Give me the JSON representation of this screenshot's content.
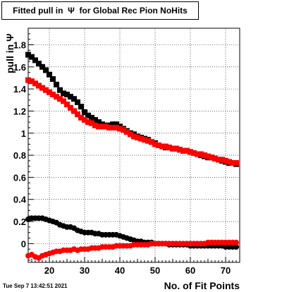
{
  "window": {
    "title": "Fitted pull in  Ψ  for Global Rec Pion NoHits",
    "datestamp": "Tue Sep  7 13:42:51 2021"
  },
  "chart_data": {
    "type": "scatter",
    "title": "Fitted pull in  Ψ  for Global Rec Pion NoHits",
    "xlabel": "No. of Fit Points",
    "ylabel": "pull in Ψ",
    "xlim": [
      14,
      74
    ],
    "ylim": [
      -0.17,
      1.95
    ],
    "grid": true,
    "x_ticks": [
      20,
      30,
      40,
      50,
      60,
      70
    ],
    "y_ticks": [
      0,
      0.2,
      0.4,
      0.6,
      0.8,
      1,
      1.2,
      1.4,
      1.6,
      1.8
    ],
    "series": [
      {
        "color": "#000000",
        "marker": "square",
        "points": [
          [
            14,
            1.71
          ],
          [
            15,
            1.69
          ],
          [
            16,
            1.66
          ],
          [
            17,
            1.63
          ],
          [
            18,
            1.6
          ],
          [
            19,
            1.57
          ],
          [
            20,
            1.53
          ],
          [
            21,
            1.49
          ],
          [
            22,
            1.44
          ],
          [
            23,
            1.39
          ],
          [
            24,
            1.36
          ],
          [
            25,
            1.35
          ],
          [
            26,
            1.33
          ],
          [
            27,
            1.31
          ],
          [
            28,
            1.28
          ],
          [
            29,
            1.24
          ],
          [
            30,
            1.19
          ],
          [
            31,
            1.16
          ],
          [
            32,
            1.14
          ],
          [
            33,
            1.12
          ],
          [
            34,
            1.1
          ],
          [
            35,
            1.08
          ],
          [
            36,
            1.07
          ],
          [
            37,
            1.07
          ],
          [
            38,
            1.08
          ],
          [
            39,
            1.08
          ],
          [
            40,
            1.06
          ],
          [
            41,
            1.04
          ],
          [
            42,
            1.02
          ],
          [
            43,
            1.0
          ],
          [
            44,
            0.99
          ],
          [
            45,
            0.97
          ],
          [
            46,
            0.96
          ],
          [
            47,
            0.95
          ],
          [
            48,
            0.94
          ],
          [
            49,
            0.92
          ],
          [
            50,
            0.91
          ],
          [
            51,
            0.89
          ],
          [
            52,
            0.88
          ],
          [
            53,
            0.87
          ],
          [
            54,
            0.87
          ],
          [
            55,
            0.86
          ],
          [
            56,
            0.86
          ],
          [
            57,
            0.85
          ],
          [
            58,
            0.84
          ],
          [
            59,
            0.84
          ],
          [
            60,
            0.83
          ],
          [
            61,
            0.82
          ],
          [
            62,
            0.81
          ],
          [
            63,
            0.8
          ],
          [
            64,
            0.79
          ],
          [
            65,
            0.78
          ],
          [
            66,
            0.78
          ],
          [
            67,
            0.77
          ],
          [
            68,
            0.76
          ],
          [
            69,
            0.75
          ],
          [
            70,
            0.74
          ],
          [
            71,
            0.73
          ],
          [
            72,
            0.73
          ],
          [
            73,
            0.72
          ]
        ]
      },
      {
        "color": "#ff0000",
        "marker": "square",
        "points": [
          [
            14,
            1.48
          ],
          [
            15,
            1.47
          ],
          [
            16,
            1.45
          ],
          [
            17,
            1.43
          ],
          [
            18,
            1.41
          ],
          [
            19,
            1.39
          ],
          [
            20,
            1.37
          ],
          [
            21,
            1.35
          ],
          [
            22,
            1.33
          ],
          [
            23,
            1.31
          ],
          [
            24,
            1.29
          ],
          [
            25,
            1.26
          ],
          [
            26,
            1.23
          ],
          [
            27,
            1.2
          ],
          [
            28,
            1.17
          ],
          [
            29,
            1.14
          ],
          [
            30,
            1.12
          ],
          [
            31,
            1.1
          ],
          [
            32,
            1.09
          ],
          [
            33,
            1.07
          ],
          [
            34,
            1.06
          ],
          [
            35,
            1.06
          ],
          [
            36,
            1.06
          ],
          [
            37,
            1.05
          ],
          [
            38,
            1.05
          ],
          [
            39,
            1.05
          ],
          [
            40,
            1.04
          ],
          [
            41,
            1.03
          ],
          [
            42,
            1.01
          ],
          [
            43,
            0.99
          ],
          [
            44,
            0.97
          ],
          [
            45,
            0.96
          ],
          [
            46,
            0.95
          ],
          [
            47,
            0.94
          ],
          [
            48,
            0.93
          ],
          [
            49,
            0.92
          ],
          [
            50,
            0.9
          ],
          [
            51,
            0.89
          ],
          [
            52,
            0.88
          ],
          [
            53,
            0.88
          ],
          [
            54,
            0.87
          ],
          [
            55,
            0.86
          ],
          [
            56,
            0.86
          ],
          [
            57,
            0.85
          ],
          [
            58,
            0.84
          ],
          [
            59,
            0.84
          ],
          [
            60,
            0.83
          ],
          [
            61,
            0.82
          ],
          [
            62,
            0.81
          ],
          [
            63,
            0.81
          ],
          [
            64,
            0.8
          ],
          [
            65,
            0.79
          ],
          [
            66,
            0.78
          ],
          [
            67,
            0.77
          ],
          [
            68,
            0.76
          ],
          [
            69,
            0.76
          ],
          [
            70,
            0.75
          ],
          [
            71,
            0.74
          ],
          [
            72,
            0.73
          ],
          [
            73,
            0.73
          ]
        ]
      },
      {
        "color": "#000000",
        "marker": "circle",
        "points": [
          [
            14,
            0.22
          ],
          [
            15,
            0.23
          ],
          [
            16,
            0.23
          ],
          [
            17,
            0.23
          ],
          [
            18,
            0.23
          ],
          [
            19,
            0.22
          ],
          [
            20,
            0.21
          ],
          [
            21,
            0.2
          ],
          [
            22,
            0.19
          ],
          [
            23,
            0.17
          ],
          [
            24,
            0.16
          ],
          [
            25,
            0.15
          ],
          [
            26,
            0.15
          ],
          [
            27,
            0.14
          ],
          [
            28,
            0.12
          ],
          [
            29,
            0.11
          ],
          [
            30,
            0.1
          ],
          [
            31,
            0.1
          ],
          [
            32,
            0.1
          ],
          [
            33,
            0.09
          ],
          [
            34,
            0.09
          ],
          [
            35,
            0.08
          ],
          [
            36,
            0.08
          ],
          [
            37,
            0.08
          ],
          [
            38,
            0.08
          ],
          [
            39,
            0.08
          ],
          [
            40,
            0.07
          ],
          [
            41,
            0.06
          ],
          [
            42,
            0.05
          ],
          [
            43,
            0.04
          ],
          [
            44,
            0.03
          ],
          [
            45,
            0.02
          ],
          [
            46,
            0.02
          ],
          [
            47,
            0.01
          ],
          [
            48,
            0.01
          ],
          [
            49,
            0.01
          ],
          [
            50,
            0.0
          ],
          [
            51,
            0.0
          ],
          [
            52,
            0.0
          ],
          [
            53,
            0.0
          ],
          [
            54,
            -0.01
          ],
          [
            55,
            -0.01
          ],
          [
            56,
            -0.01
          ],
          [
            57,
            -0.01
          ],
          [
            58,
            -0.01
          ],
          [
            59,
            -0.01
          ],
          [
            60,
            -0.02
          ],
          [
            61,
            -0.02
          ],
          [
            62,
            -0.02
          ],
          [
            63,
            -0.02
          ],
          [
            64,
            -0.02
          ],
          [
            65,
            -0.02
          ],
          [
            66,
            -0.02
          ],
          [
            67,
            -0.02
          ],
          [
            68,
            -0.02
          ],
          [
            69,
            -0.02
          ],
          [
            70,
            -0.03
          ],
          [
            71,
            -0.03
          ],
          [
            72,
            -0.03
          ],
          [
            73,
            -0.03
          ]
        ]
      },
      {
        "color": "#ff0000",
        "marker": "circle",
        "points": [
          [
            14,
            -0.11
          ],
          [
            15,
            -0.1
          ],
          [
            16,
            -0.12
          ],
          [
            17,
            -0.13
          ],
          [
            18,
            -0.11
          ],
          [
            19,
            -0.1
          ],
          [
            20,
            -0.09
          ],
          [
            21,
            -0.08
          ],
          [
            22,
            -0.07
          ],
          [
            23,
            -0.07
          ],
          [
            24,
            -0.06
          ],
          [
            25,
            -0.06
          ],
          [
            26,
            -0.06
          ],
          [
            27,
            -0.05
          ],
          [
            28,
            -0.06
          ],
          [
            29,
            -0.05
          ],
          [
            30,
            -0.05
          ],
          [
            31,
            -0.05
          ],
          [
            32,
            -0.04
          ],
          [
            33,
            -0.04
          ],
          [
            34,
            -0.04
          ],
          [
            35,
            -0.03
          ],
          [
            36,
            -0.03
          ],
          [
            37,
            -0.03
          ],
          [
            38,
            -0.03
          ],
          [
            39,
            -0.02
          ],
          [
            40,
            -0.02
          ],
          [
            41,
            -0.02
          ],
          [
            42,
            -0.02
          ],
          [
            43,
            -0.02
          ],
          [
            44,
            -0.01
          ],
          [
            45,
            -0.01
          ],
          [
            46,
            -0.01
          ],
          [
            47,
            -0.01
          ],
          [
            48,
            -0.01
          ],
          [
            49,
            0.0
          ],
          [
            50,
            0.0
          ],
          [
            51,
            0.0
          ],
          [
            52,
            0.0
          ],
          [
            53,
            0.0
          ],
          [
            54,
            0.0
          ],
          [
            55,
            0.0
          ],
          [
            56,
            0.0
          ],
          [
            57,
            0.0
          ],
          [
            58,
            0.0
          ],
          [
            59,
            0.0
          ],
          [
            60,
            0.0
          ],
          [
            61,
            0.0
          ],
          [
            62,
            0.0
          ],
          [
            63,
            0.0
          ],
          [
            64,
            0.0
          ],
          [
            65,
            0.01
          ],
          [
            66,
            0.01
          ],
          [
            67,
            0.01
          ],
          [
            68,
            0.01
          ],
          [
            69,
            0.01
          ],
          [
            70,
            0.01
          ],
          [
            71,
            0.01
          ],
          [
            72,
            0.01
          ],
          [
            73,
            0.01
          ]
        ]
      }
    ]
  }
}
